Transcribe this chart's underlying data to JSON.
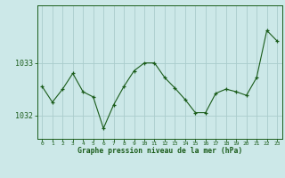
{
  "x": [
    0,
    1,
    2,
    3,
    4,
    5,
    6,
    7,
    8,
    9,
    10,
    11,
    12,
    13,
    14,
    15,
    16,
    17,
    18,
    19,
    20,
    21,
    22,
    23
  ],
  "y": [
    1032.55,
    1032.25,
    1032.5,
    1032.8,
    1032.45,
    1032.35,
    1031.75,
    1032.2,
    1032.55,
    1032.85,
    1033.0,
    1033.0,
    1032.72,
    1032.52,
    1032.3,
    1032.05,
    1032.05,
    1032.42,
    1032.5,
    1032.45,
    1032.38,
    1032.72,
    1033.62,
    1033.42
  ],
  "line_color": "#1a5c1a",
  "marker_color": "#1a5c1a",
  "bg_color": "#cce8e8",
  "grid_color": "#aacccc",
  "axis_color": "#1a5c1a",
  "tick_label_color": "#1a5c1a",
  "title": "Graphe pression niveau de la mer (hPa)",
  "title_color": "#1a5c1a",
  "ytick_labels": [
    "1032",
    "1033"
  ],
  "ytick_values": [
    1032.0,
    1033.0
  ],
  "ylim": [
    1031.55,
    1034.1
  ],
  "xlim": [
    -0.5,
    23.5
  ],
  "xlabel_vals": [
    0,
    1,
    2,
    3,
    4,
    5,
    6,
    7,
    8,
    9,
    10,
    11,
    12,
    13,
    14,
    15,
    16,
    17,
    18,
    19,
    20,
    21,
    22,
    23
  ]
}
